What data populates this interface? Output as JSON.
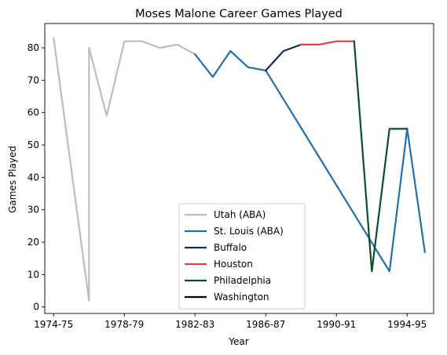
{
  "chart_data": {
    "type": "line",
    "title": "Moses Malone Career Games Played",
    "xlabel": "Year",
    "ylabel": "Games Played",
    "xlim": [
      1973.5,
      1995.5
    ],
    "ylim": [
      -2,
      87.5
    ],
    "x_ticks": [
      {
        "x": 1974,
        "label": "1974-75"
      },
      {
        "x": 1978,
        "label": "1978-79"
      },
      {
        "x": 1982,
        "label": "1982-83"
      },
      {
        "x": 1986,
        "label": "1986-87"
      },
      {
        "x": 1990,
        "label": "1990-91"
      },
      {
        "x": 1994,
        "label": "1994-95"
      }
    ],
    "y_ticks": [
      0,
      10,
      20,
      30,
      40,
      50,
      60,
      70,
      80
    ],
    "grid": false,
    "legend_position": "lower center",
    "series": [
      {
        "name": "Utah (ABA)",
        "color": "#bdbdbd",
        "x": [
          1974,
          1976,
          1976,
          1977,
          1978,
          1979,
          1980,
          1981,
          1982
        ],
        "y": [
          83,
          2,
          80,
          59,
          82,
          82,
          80,
          81,
          78
        ]
      },
      {
        "name": "St. Louis (ABA)",
        "color": "#1f6fb0",
        "x": [
          1982,
          1983,
          1984,
          1985,
          1986,
          1993,
          1994,
          1995
        ],
        "y": [
          78,
          71,
          79,
          74,
          73,
          11,
          55,
          17
        ]
      },
      {
        "name": "Buffalo",
        "color": "#0b2d5b",
        "x": [
          1986,
          1987,
          1988
        ],
        "y": [
          73,
          79,
          81
        ]
      },
      {
        "name": "Houston",
        "color": "#d64545",
        "x": [
          1988,
          1989,
          1990,
          1991
        ],
        "y": [
          81,
          81,
          82,
          82
        ]
      },
      {
        "name": "Philadelphia",
        "color": "#0b4d2a",
        "x": [
          1991,
          1992,
          1993,
          1994
        ],
        "y": [
          82,
          11,
          55,
          55
        ]
      },
      {
        "name": "Washington",
        "color": "#000000",
        "x": [],
        "y": []
      }
    ]
  }
}
